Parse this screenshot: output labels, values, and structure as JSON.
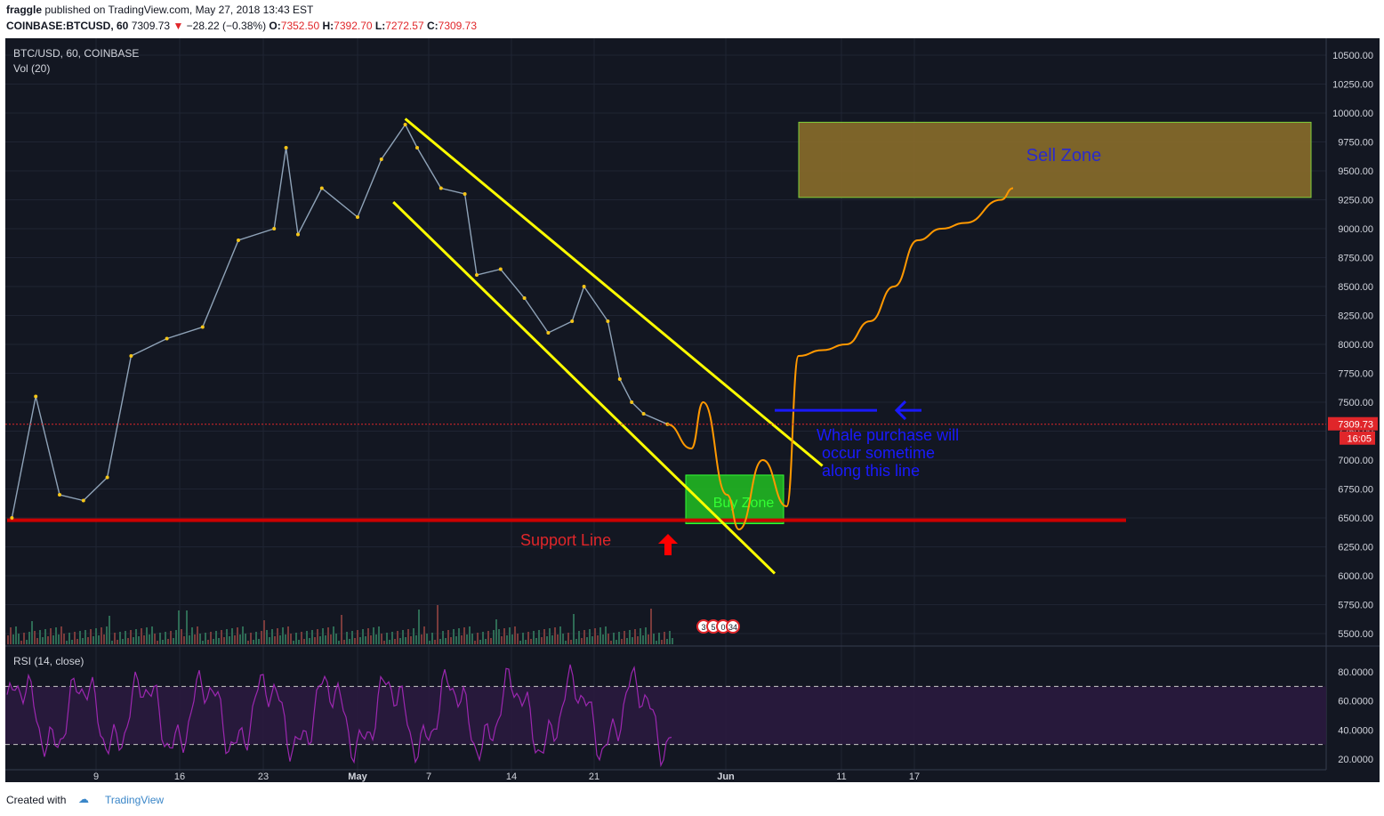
{
  "header": {
    "author": "fraggle",
    "published_text": "published on TradingView.com, May 27, 2018 13:43 EST",
    "symbol": "COINBASE:BTCUSD, 60",
    "last": "7309.73",
    "change": "−28.22 (−0.38%)",
    "o_label": "O:",
    "o": "7352.50",
    "h_label": "H:",
    "h": "7392.70",
    "l_label": "L:",
    "l": "7272.57",
    "c_label": "C:",
    "c": "7309.73"
  },
  "chart_data": {
    "type": "line",
    "title": "BTC/USD, 60, COINBASE",
    "volume_label": "Vol (20)",
    "rsi_label": "RSI (14, close)",
    "price_ticks": [
      "10500.00",
      "10250.00",
      "10000.00",
      "9750.00",
      "9500.00",
      "9250.00",
      "9000.00",
      "8750.00",
      "8500.00",
      "8250.00",
      "8000.00",
      "7750.00",
      "7500.00",
      "7250.00",
      "7000.00",
      "6750.00",
      "6500.00",
      "6250.00",
      "6000.00",
      "5750.00",
      "5500.00"
    ],
    "rsi_ticks": [
      "80.0000",
      "60.0000",
      "40.0000",
      "20.0000"
    ],
    "x_ticks": [
      "9",
      "16",
      "23",
      "May",
      "7",
      "14",
      "21",
      "Jun",
      "11",
      "17"
    ],
    "last_price_tag": "7309.73",
    "countdown_tag": "16:05",
    "price_series": [
      {
        "x": "Apr 2",
        "y": 6500
      },
      {
        "x": "Apr 4",
        "y": 7550
      },
      {
        "x": "Apr 6",
        "y": 6700
      },
      {
        "x": "Apr 8",
        "y": 6650
      },
      {
        "x": "Apr 10",
        "y": 6850
      },
      {
        "x": "Apr 12",
        "y": 7900
      },
      {
        "x": "Apr 15",
        "y": 8050
      },
      {
        "x": "Apr 18",
        "y": 8150
      },
      {
        "x": "Apr 21",
        "y": 8900
      },
      {
        "x": "Apr 24",
        "y": 9000
      },
      {
        "x": "Apr 25",
        "y": 9700
      },
      {
        "x": "Apr 26",
        "y": 8950
      },
      {
        "x": "Apr 28",
        "y": 9350
      },
      {
        "x": "May 1",
        "y": 9100
      },
      {
        "x": "May 3",
        "y": 9600
      },
      {
        "x": "May 5",
        "y": 9900
      },
      {
        "x": "May 6",
        "y": 9700
      },
      {
        "x": "May 8",
        "y": 9350
      },
      {
        "x": "May 10",
        "y": 9300
      },
      {
        "x": "May 11",
        "y": 8600
      },
      {
        "x": "May 13",
        "y": 8650
      },
      {
        "x": "May 15",
        "y": 8400
      },
      {
        "x": "May 17",
        "y": 8100
      },
      {
        "x": "May 19",
        "y": 8200
      },
      {
        "x": "May 20",
        "y": 8500
      },
      {
        "x": "May 22",
        "y": 8200
      },
      {
        "x": "May 23",
        "y": 7700
      },
      {
        "x": "May 24",
        "y": 7500
      },
      {
        "x": "May 25",
        "y": 7400
      },
      {
        "x": "May 27",
        "y": 7310
      }
    ],
    "projection": [
      {
        "x": "May 27",
        "y": 7309
      },
      {
        "x": "May 29",
        "y": 7100
      },
      {
        "x": "May 30",
        "y": 7500
      },
      {
        "x": "Jun 1",
        "y": 6700
      },
      {
        "x": "Jun 2",
        "y": 6400
      },
      {
        "x": "Jun 4",
        "y": 7000
      },
      {
        "x": "Jun 6",
        "y": 6600
      },
      {
        "x": "Jun 7",
        "y": 7900
      },
      {
        "x": "Jun 9",
        "y": 7950
      },
      {
        "x": "Jun 11",
        "y": 8000
      },
      {
        "x": "Jun 13",
        "y": 8200
      },
      {
        "x": "Jun 15",
        "y": 8500
      },
      {
        "x": "Jun 17",
        "y": 8900
      },
      {
        "x": "Jun 19",
        "y": 9000
      },
      {
        "x": "Jun 21",
        "y": 9050
      },
      {
        "x": "Jun 24",
        "y": 9250
      },
      {
        "x": "Jun 25",
        "y": 9350
      }
    ],
    "channel": {
      "upper": [
        {
          "x": "May 5",
          "y": 9950
        },
        {
          "x": "Jun 9",
          "y": 6950
        }
      ],
      "lower": [
        {
          "x": "May 4",
          "y": 9230
        },
        {
          "x": "Jun 5",
          "y": 6020
        }
      ]
    },
    "support": {
      "label": "Support Line",
      "price": 6480
    },
    "sell_zone": {
      "label": "Sell Zone",
      "from": 9270,
      "to": 9920
    },
    "buy_zone": {
      "label": "Buy Zone",
      "from": 6450,
      "to": 6870
    },
    "whale_note": [
      "Whale purchase will",
      "occur sometime",
      "along this line"
    ],
    "whale_level": 7430,
    "event_badges": [
      "3",
      "5",
      "0",
      "34"
    ],
    "rsi_levels": [
      70,
      30
    ],
    "rsi_range": [
      20,
      80
    ]
  },
  "footer": {
    "created_with": "Created with",
    "brand": "TradingView"
  },
  "colors": {
    "bg": "#131722",
    "yellow": "#ffff00",
    "orange": "#ff9800",
    "support": "#cc0000",
    "rsi": "#9c27b0",
    "blue": "#1a1aff"
  }
}
